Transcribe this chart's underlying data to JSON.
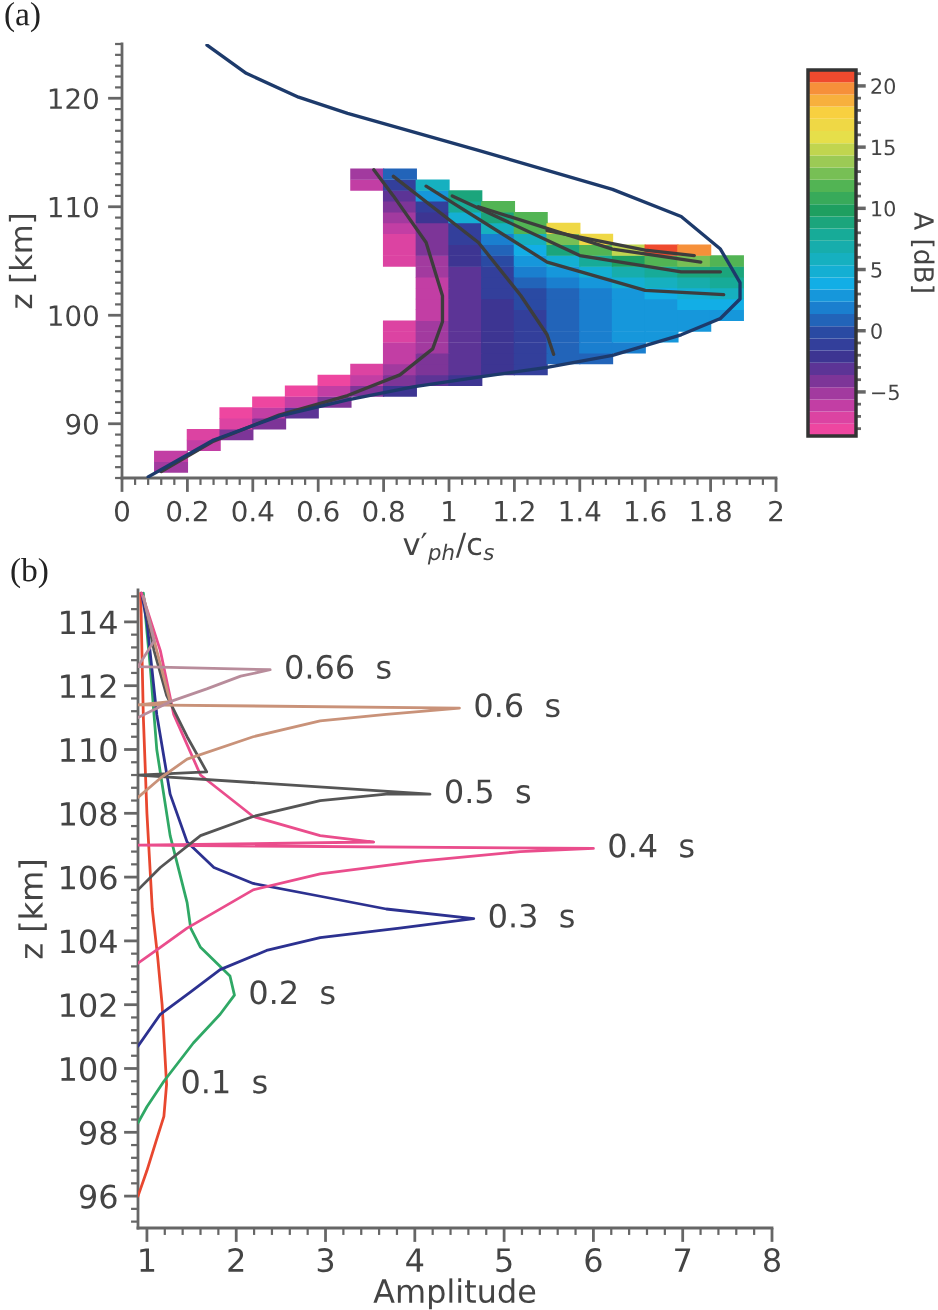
{
  "chart_data": [
    {
      "type": "scatter",
      "title": "(a)",
      "xlabel": "v′$_{ph}$/c$_{s}$",
      "ylabel": "z [km]",
      "clabel": "A [dB]",
      "xlim": [
        0,
        2
      ],
      "ylim": [
        85,
        125
      ],
      "xticks": [
        0,
        0.2,
        0.4,
        0.6,
        0.8,
        1,
        1.2,
        1.4,
        1.6,
        1.8,
        2
      ],
      "yticks": [
        90,
        100,
        110,
        120
      ],
      "clim": [
        -8.6,
        21.3
      ],
      "cticks": [
        {
          "value": -5,
          "label": "−5"
        },
        0,
        5,
        10,
        15,
        20
      ],
      "series": [
        {
          "type": "scatter",
          "marker": "square",
          "x": [
            0.15,
            0.15,
            0.25,
            0.25,
            0.35,
            0.35,
            0.45,
            0.35,
            0.45,
            0.55,
            0.45,
            0.55,
            0.65,
            0.55,
            0.65,
            0.75,
            0.85,
            0.65,
            0.75,
            0.85,
            0.95,
            1.05,
            0.75,
            0.85,
            0.95,
            1.05,
            1.15,
            1.25,
            0.85,
            0.95,
            1.05,
            1.15,
            1.25,
            1.35,
            1.45,
            0.85,
            0.95,
            1.05,
            1.15,
            1.25,
            1.35,
            1.45,
            1.55,
            0.85,
            0.95,
            1.05,
            1.15,
            1.25,
            1.35,
            1.45,
            1.55,
            1.65,
            0.85,
            0.95,
            1.05,
            1.15,
            1.25,
            1.35,
            1.45,
            1.55,
            1.65,
            1.75,
            0.95,
            1.05,
            1.15,
            1.25,
            1.35,
            1.45,
            1.55,
            1.65,
            1.75,
            1.85,
            0.95,
            1.05,
            1.15,
            1.25,
            1.35,
            1.45,
            1.55,
            1.65,
            1.75,
            1.85,
            0.95,
            1.05,
            1.15,
            1.25,
            1.35,
            1.45,
            1.55,
            1.65,
            1.75,
            1.85,
            0.95,
            1.05,
            1.15,
            1.25,
            1.35,
            1.45,
            1.55,
            1.65,
            1.75,
            1.85,
            0.95,
            1.05,
            1.15,
            1.25,
            1.35,
            1.45,
            1.55,
            1.65,
            1.75,
            1.85,
            0.85,
            0.95,
            1.05,
            1.15,
            1.25,
            1.35,
            1.45,
            1.55,
            1.65,
            1.75,
            1.85,
            0.85,
            0.95,
            1.05,
            1.15,
            1.25,
            1.35,
            1.45,
            1.55,
            1.65,
            1.75,
            0.85,
            0.95,
            1.05,
            1.15,
            1.25,
            1.35,
            1.45,
            0.85,
            0.95,
            1.05,
            1.15,
            1.25,
            1.35,
            0.85,
            0.95,
            1.05,
            1.15,
            1.25,
            0.85,
            0.95,
            1.05,
            1.15,
            0.85,
            0.95,
            1.05,
            0.75,
            0.85,
            0.95,
            0.75,
            0.85
          ],
          "values": [
            86,
            87,
            88,
            89,
            89,
            90,
            90,
            91,
            91,
            91,
            92,
            92,
            92,
            93,
            93,
            93,
            93,
            94,
            94,
            94,
            94,
            94,
            95,
            95,
            95,
            95,
            95,
            95,
            96,
            96,
            96,
            96,
            96,
            96,
            96,
            97,
            97,
            97,
            97,
            97,
            97,
            97,
            97,
            98,
            98,
            98,
            98,
            98,
            98,
            98,
            98,
            98,
            99,
            99,
            99,
            99,
            99,
            99,
            99,
            99,
            99,
            99,
            100,
            100,
            100,
            100,
            100,
            100,
            100,
            100,
            100,
            100,
            101,
            101,
            101,
            101,
            101,
            101,
            101,
            101,
            101,
            101,
            102,
            102,
            102,
            102,
            102,
            102,
            102,
            102,
            102,
            102,
            103,
            103,
            103,
            103,
            103,
            103,
            103,
            103,
            103,
            103,
            104,
            104,
            104,
            104,
            104,
            104,
            104,
            104,
            104,
            104,
            105,
            105,
            105,
            105,
            105,
            105,
            105,
            105,
            105,
            105,
            105,
            106,
            106,
            106,
            106,
            106,
            106,
            106,
            106,
            106,
            106,
            107,
            107,
            107,
            107,
            107,
            107,
            107,
            108,
            108,
            108,
            108,
            108,
            108,
            109,
            109,
            109,
            109,
            109,
            110,
            110,
            110,
            110,
            111,
            111,
            111,
            112,
            112,
            112,
            113,
            113
          ],
          "colors": [
            "#a23a9f",
            "#c23ea4",
            "#c23ea4",
            "#dc43a2",
            "#7d3598",
            "#dc43a2",
            "#7d3598",
            "#ee46a0",
            "#c23ea4",
            "#5c3496",
            "#ee46a0",
            "#c23ea4",
            "#7d3598",
            "#ee46a0",
            "#c23ea4",
            "#7d3598",
            "#3d3592",
            "#ee46a0",
            "#c23ea4",
            "#7d3598",
            "#5c3496",
            "#3d3592",
            "#dc43a2",
            "#a23a9f",
            "#7d3598",
            "#5c3496",
            "#3d3592",
            "#333f9b",
            "#c23ea4",
            "#7d3598",
            "#5c3496",
            "#3d3592",
            "#333f9b",
            "#2264b9",
            "#2264b9",
            "#c23ea4",
            "#a23a9f",
            "#5c3496",
            "#3d3592",
            "#333f9b",
            "#2264b9",
            "#1a7fcf",
            "#1a7fcf",
            "#dc43a2",
            "#a23a9f",
            "#5c3496",
            "#3d3592",
            "#333f9b",
            "#2264b9",
            "#1a7fcf",
            "#1697db",
            "#1697db",
            "#dc43a2",
            "#a23a9f",
            "#5c3496",
            "#3d3592",
            "#333f9b",
            "#2264b9",
            "#1a7fcf",
            "#1697db",
            "#1697db",
            "#1697db",
            "#c23ea4",
            "#5c3496",
            "#3d3592",
            "#333f9b",
            "#2264b9",
            "#1a7fcf",
            "#1697db",
            "#1697db",
            "#1697db",
            "#1697db",
            "#c23ea4",
            "#5c3496",
            "#3d3592",
            "#2a4aa3",
            "#2264b9",
            "#1a7fcf",
            "#1697db",
            "#1697db",
            "#12aee6",
            "#12aee6",
            "#c23ea4",
            "#5c3496",
            "#333f9b",
            "#2a4aa3",
            "#2264b9",
            "#1a7fcf",
            "#1697db",
            "#12aee6",
            "#14afd3",
            "#16b0c0",
            "#c23ea4",
            "#5c3496",
            "#333f9b",
            "#2264b9",
            "#1a7fcf",
            "#1697db",
            "#14afd3",
            "#16b0c0",
            "#17adac",
            "#17ab98",
            "#a23a9f",
            "#5c3496",
            "#333f9b",
            "#1a7fcf",
            "#1697db",
            "#14afd3",
            "#17adac",
            "#17ab98",
            "#1ba57c",
            "#1ba57c",
            "#dc43a2",
            "#a23a9f",
            "#3d3592",
            "#2a4aa3",
            "#1697db",
            "#14afd3",
            "#17ab98",
            "#1e9f60",
            "#52b454",
            "#77bf55",
            "#52b454",
            "#dc43a2",
            "#7d3598",
            "#3d3592",
            "#2264b9",
            "#12aee6",
            "#1ba57c",
            "#52b454",
            "#c1d54f",
            "#ef4a2e",
            "#f6903a",
            "#dc43a2",
            "#7d3598",
            "#333f9b",
            "#1a7fcf",
            "#16b0c0",
            "#77bf55",
            "#efd845",
            "#c23ea4",
            "#7d3598",
            "#333f9b",
            "#16b0c0",
            "#52b454",
            "#efd845",
            "#a23a9f",
            "#3d3592",
            "#14afd3",
            "#1ba57c",
            "#52b454",
            "#7d3598",
            "#333f9b",
            "#17ab98",
            "#52b454",
            "#5c3496",
            "#1697db",
            "#1ba57c",
            "#c23ea4",
            "#333f9b",
            "#16b0c0",
            "#a23a9f",
            "#2264b9"
          ]
        },
        {
          "type": "line",
          "color": "#3d3d3d",
          "x": [
            0.12,
            0.28,
            0.48,
            0.69,
            0.85,
            0.95,
            0.98,
            0.98,
            0.93,
            0.83,
            0.77
          ],
          "values": [
            85.6,
            88.4,
            90.8,
            92.6,
            94.5,
            96.9,
            99.4,
            101.8,
            106.7,
            111,
            113.4
          ]
        },
        {
          "type": "line",
          "color": "#3d3d3d",
          "x": [
            1.32,
            1.3,
            1.22,
            1.09,
            0.83
          ],
          "values": [
            96.4,
            98.2,
            101.8,
            106.7,
            112.8
          ]
        },
        {
          "type": "line",
          "color": "#3d3d3d",
          "x": [
            0.93,
            1.3,
            1.6,
            1.84
          ],
          "values": [
            111.9,
            104.9,
            102.3,
            101.9
          ]
        },
        {
          "type": "line",
          "color": "#3d3d3d",
          "x": [
            1.01,
            1.4,
            1.71,
            1.83
          ],
          "values": [
            111,
            105.5,
            104,
            104
          ]
        },
        {
          "type": "line",
          "color": "#3d3d3d",
          "x": [
            1.09,
            1.5,
            1.77
          ],
          "values": [
            110,
            106.1,
            104.9
          ]
        },
        {
          "type": "line",
          "color": "#3d3d3d",
          "x": [
            1.3,
            1.6,
            1.75
          ],
          "values": [
            107.8,
            106,
            105.5
          ]
        },
        {
          "type": "line",
          "color": "#1d3a6b",
          "x": [
            0.26,
            0.38,
            0.54,
            0.69,
            1.09,
            1.5,
            1.71,
            1.83,
            1.89,
            1.89,
            1.83,
            1.71,
            1.5,
            1.3,
            1.09,
            0.89,
            0.69,
            0.48,
            0.28,
            0.08
          ],
          "values": [
            124.9,
            122.3,
            120.1,
            118.6,
            115.2,
            111.6,
            109.1,
            106.1,
            103,
            101.5,
            99.7,
            98.2,
            96.3,
            95.2,
            94.3,
            93.4,
            92.2,
            90.7,
            88.5,
            85.1
          ]
        }
      ]
    },
    {
      "type": "line",
      "title": "(b)",
      "xlabel": "Amplitude",
      "ylabel": "z [km]",
      "xlim": [
        0.9,
        8
      ],
      "ylim": [
        95,
        115
      ],
      "xticks": [
        1,
        2,
        3,
        4,
        5,
        6,
        7,
        8
      ],
      "yticks": [
        96,
        98,
        100,
        102,
        104,
        106,
        108,
        110,
        112,
        114
      ],
      "series": [
        {
          "name": "0.1  s",
          "color": "#e8472f",
          "x": [
            0.9,
            1.0,
            1.1,
            1.19,
            1.22,
            1.2,
            1.17,
            1.12,
            1.06,
            1.0,
            0.96,
            0.93
          ],
          "values": [
            96.0,
            96.8,
            97.7,
            98.5,
            99.5,
            100.5,
            102.0,
            103.5,
            105.0,
            108.0,
            111.0,
            114.9
          ]
        },
        {
          "name": "0.2  s",
          "color": "#2fa865",
          "x": [
            0.9,
            1.0,
            1.19,
            1.52,
            1.82,
            1.98,
            1.93,
            1.6,
            1.49,
            1.45,
            1.26,
            1.11,
            1.04,
            0.96
          ],
          "values": [
            98.3,
            98.8,
            99.6,
            100.8,
            101.7,
            102.3,
            102.9,
            103.8,
            104.4,
            105.2,
            107.3,
            110.0,
            112.5,
            114.9
          ]
        },
        {
          "name": "0.3  s",
          "color": "#2c3190",
          "x": [
            0.9,
            1.15,
            1.49,
            1.82,
            2.34,
            2.94,
            3.83,
            4.66,
            3.68,
            2.94,
            2.19,
            1.75,
            1.45,
            1.26,
            1.11,
            1.0,
            0.94
          ],
          "values": [
            100.7,
            101.7,
            102.4,
            103.1,
            103.7,
            104.1,
            104.4,
            104.7,
            105.0,
            105.4,
            105.8,
            106.3,
            107.1,
            108.6,
            111.1,
            114.0,
            114.9
          ]
        },
        {
          "name": "0.4  s",
          "color": "#ea4d8c",
          "x": [
            0.9,
            1.15,
            1.45,
            2.19,
            2.94,
            4.06,
            5.18,
            6.0,
            0.9,
            3.54,
            2.94,
            2.19,
            1.6,
            1.3,
            1.15,
            1.0,
            0.94
          ],
          "values": [
            103.3,
            103.8,
            104.4,
            105.6,
            106.1,
            106.5,
            106.8,
            106.9,
            107.0,
            107.1,
            107.3,
            107.9,
            109.2,
            111.1,
            113.1,
            114.4,
            114.9
          ]
        },
        {
          "name": "0.5  s",
          "color": "#555555",
          "x": [
            0.9,
            1.15,
            1.6,
            2.19,
            2.94,
            3.68,
            4.17,
            0.9,
            1.67,
            1.45,
            1.22,
            1.08,
            0.96
          ],
          "values": [
            105.6,
            106.3,
            107.3,
            107.9,
            108.4,
            108.6,
            108.6,
            109.2,
            109.3,
            110.4,
            111.7,
            113.1,
            114.8
          ]
        },
        {
          "name": "0.6  s",
          "color": "#c99279",
          "x": [
            0.9,
            1.15,
            1.45,
            2.19,
            2.94,
            3.68,
            4.5,
            0.9,
            1.26,
            1.11,
            0.96
          ],
          "values": [
            108.5,
            109.1,
            109.7,
            110.4,
            110.9,
            111.1,
            111.3,
            111.4,
            111.5,
            113.1,
            114.8
          ]
        },
        {
          "name": "0.66  s",
          "color": "#b88c9b",
          "x": [
            0.9,
            1.26,
            1.67,
            2.05,
            2.38,
            0.9,
            1.08,
            0.96
          ],
          "values": [
            111.0,
            111.5,
            111.9,
            112.3,
            112.5,
            112.6,
            113.4,
            114.8
          ]
        }
      ]
    }
  ]
}
